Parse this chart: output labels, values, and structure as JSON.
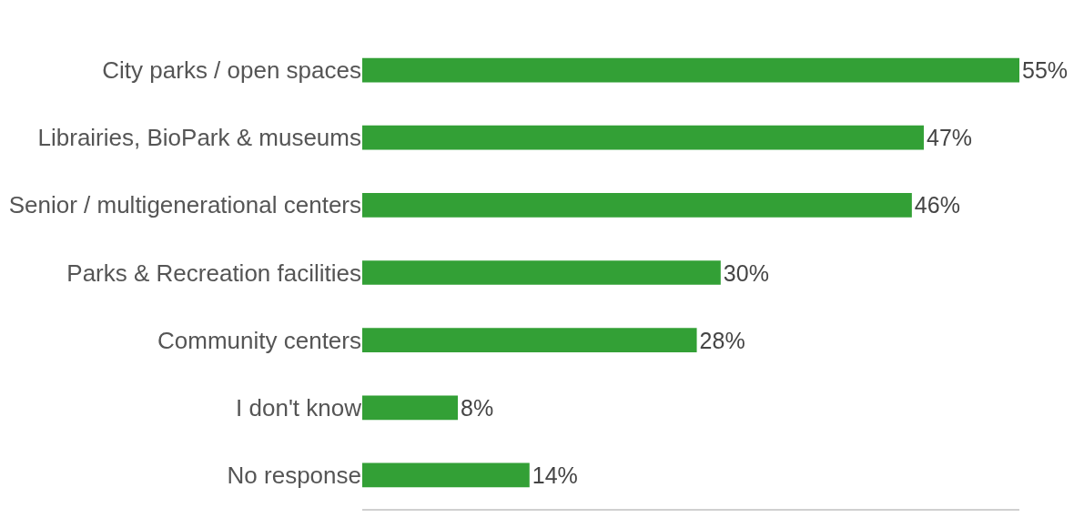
{
  "chart_data": {
    "type": "bar",
    "orientation": "horizontal",
    "categories": [
      "City parks / open spaces",
      "Librairies, BioPark & museums",
      "Senior / multigenerational centers",
      "Parks & Recreation facilities",
      "Community centers",
      "I don't know",
      "No response"
    ],
    "values": [
      55,
      47,
      46,
      30,
      28,
      8,
      14
    ],
    "value_labels": [
      "55%",
      "47%",
      "46%",
      "30%",
      "28%",
      "8%",
      "14%"
    ],
    "color": "#33a036",
    "xlim": [
      0,
      55
    ],
    "grid": false,
    "legend": false
  }
}
